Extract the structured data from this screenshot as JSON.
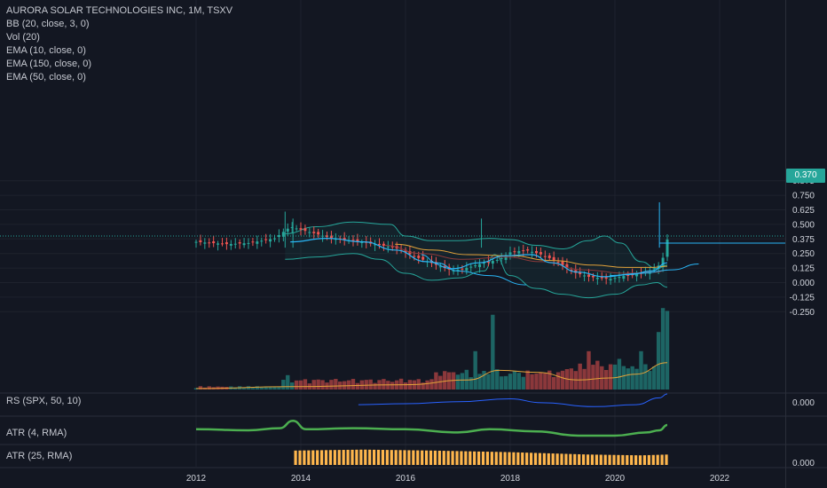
{
  "legend": {
    "title": "AURORA SOLAR TECHNOLOGIES INC, 1M, TSXV",
    "indicators": [
      "BB (20, close, 3, 0)",
      "Vol (20)",
      "EMA (10, close, 0)",
      "EMA (150, close, 0)",
      "EMA (50, close, 0)"
    ]
  },
  "panes": {
    "rs_label": "RS (SPX, 50, 10)",
    "atr4_label": "ATR (4, RMA)",
    "atr25_label": "ATR (25, RMA)",
    "rs_axis_value": "0.000",
    "atr25_axis_value": "0.000"
  },
  "price_badge": "0.370",
  "colors": {
    "background": "#131722",
    "up": "#26a69a",
    "down": "#ef5350",
    "bb": "#26a69a",
    "ema10": "#29b6f6",
    "ema150": "#e3a33a",
    "ema50": "#8b3a3a",
    "rs": "#2962ff",
    "atr4": "#4caf50",
    "atr25": "#ffb74d",
    "current_line": "#29b6f6"
  },
  "chart_data": [
    {
      "type": "candlestick",
      "x_ticks": [
        "2012",
        "2014",
        "2016",
        "2018",
        "2020",
        "2022"
      ],
      "y_ticks": [
        "0.875",
        "0.750",
        "0.625",
        "0.500",
        "0.375",
        "0.250",
        "0.125",
        "0.000",
        "-0.125",
        "-0.250"
      ],
      "ylim": [
        -0.3,
        0.95
      ],
      "xlim": [
        2011.0,
        2023.2
      ],
      "current_price": 0.37,
      "series": [
        {
          "name": "Close",
          "anchors": [
            [
              2012.0,
              0.35
            ],
            [
              2012.6,
              0.33
            ],
            [
              2013.0,
              0.34
            ],
            [
              2013.5,
              0.38
            ],
            [
              2013.8,
              0.48
            ],
            [
              2014.2,
              0.43
            ],
            [
              2014.6,
              0.38
            ],
            [
              2015.0,
              0.36
            ],
            [
              2015.4,
              0.33
            ],
            [
              2015.8,
              0.3
            ],
            [
              2016.2,
              0.22
            ],
            [
              2016.6,
              0.15
            ],
            [
              2016.9,
              0.1
            ],
            [
              2017.2,
              0.13
            ],
            [
              2017.5,
              0.17
            ],
            [
              2017.8,
              0.2
            ],
            [
              2018.0,
              0.26
            ],
            [
              2018.3,
              0.28
            ],
            [
              2018.6,
              0.24
            ],
            [
              2018.9,
              0.18
            ],
            [
              2019.2,
              0.09
            ],
            [
              2019.5,
              0.05
            ],
            [
              2019.9,
              0.03
            ],
            [
              2020.2,
              0.06
            ],
            [
              2020.5,
              0.08
            ],
            [
              2020.8,
              0.12
            ],
            [
              2020.95,
              0.24
            ],
            [
              2021.0,
              0.37
            ]
          ]
        },
        {
          "name": "BB (20, close, 3, 0)",
          "upper": [
            [
              2013.7,
              0.42
            ],
            [
              2014.3,
              0.48
            ],
            [
              2015.0,
              0.52
            ],
            [
              2015.7,
              0.5
            ],
            [
              2016.0,
              0.4
            ],
            [
              2016.5,
              0.36
            ],
            [
              2017.0,
              0.36
            ],
            [
              2017.6,
              0.38
            ],
            [
              2018.0,
              0.37
            ],
            [
              2018.5,
              0.32
            ],
            [
              2019.0,
              0.29
            ],
            [
              2019.5,
              0.36
            ],
            [
              2019.8,
              0.4
            ],
            [
              2020.1,
              0.34
            ],
            [
              2020.5,
              0.18
            ],
            [
              2020.8,
              0.12
            ],
            [
              2021.0,
              0.15
            ]
          ],
          "lower": [
            [
              2013.7,
              0.2
            ],
            [
              2014.3,
              0.22
            ],
            [
              2015.0,
              0.25
            ],
            [
              2015.5,
              0.2
            ],
            [
              2016.0,
              0.08
            ],
            [
              2016.5,
              0.02
            ],
            [
              2017.0,
              0.04
            ],
            [
              2017.5,
              0.1
            ],
            [
              2017.7,
              0.24
            ],
            [
              2018.0,
              0.06
            ],
            [
              2018.5,
              -0.05
            ],
            [
              2019.0,
              -0.1
            ],
            [
              2019.5,
              -0.13
            ],
            [
              2020.0,
              -0.1
            ],
            [
              2020.5,
              -0.02
            ],
            [
              2020.8,
              0.0
            ],
            [
              2021.0,
              -0.04
            ]
          ]
        },
        {
          "name": "EMA (10, close, 0)",
          "values": [
            [
              2013.8,
              0.35
            ],
            [
              2014.5,
              0.38
            ],
            [
              2015.2,
              0.35
            ],
            [
              2015.8,
              0.28
            ],
            [
              2016.4,
              0.18
            ],
            [
              2016.9,
              0.12
            ],
            [
              2017.4,
              0.17
            ],
            [
              2017.9,
              0.23
            ],
            [
              2018.4,
              0.24
            ],
            [
              2018.8,
              0.17
            ],
            [
              2019.3,
              0.09
            ],
            [
              2019.8,
              0.05
            ],
            [
              2020.3,
              0.07
            ],
            [
              2020.7,
              0.1
            ],
            [
              2021.0,
              0.17
            ]
          ]
        },
        {
          "name": "EMA (150, close, 0)",
          "values": [
            [
              2015.8,
              0.33
            ],
            [
              2016.5,
              0.28
            ],
            [
              2017.2,
              0.24
            ],
            [
              2018.0,
              0.23
            ],
            [
              2018.8,
              0.19
            ],
            [
              2019.6,
              0.15
            ],
            [
              2020.2,
              0.13
            ],
            [
              2020.7,
              0.13
            ],
            [
              2021.0,
              0.14
            ]
          ]
        },
        {
          "name": "EMA (50, close, 0)",
          "values": [
            [
              2015.6,
              0.32
            ],
            [
              2016.3,
              0.25
            ],
            [
              2017.1,
              0.2
            ],
            [
              2017.9,
              0.22
            ],
            [
              2018.6,
              0.18
            ],
            [
              2019.4,
              0.11
            ],
            [
              2020.2,
              0.08
            ],
            [
              2020.8,
              0.09
            ],
            [
              2021.0,
              0.11
            ]
          ]
        },
        {
          "name": "Trendline",
          "values": [
            [
              2016.3,
              0.24
            ],
            [
              2016.6,
              0.17
            ],
            [
              2017.0,
              0.1
            ],
            [
              2017.6,
              0.06
            ],
            [
              2018.3,
              -0.02
            ]
          ]
        },
        {
          "name": "Trendline 2",
          "values": [
            [
              2019.9,
              0.06
            ],
            [
              2020.5,
              0.08
            ],
            [
              2021.1,
              0.11
            ],
            [
              2021.6,
              0.16
            ]
          ]
        }
      ]
    },
    {
      "type": "bar",
      "name": "Vol (20)",
      "spikes": [
        [
          2013.75,
          0.15
        ],
        [
          2016.1,
          0.1
        ],
        [
          2016.8,
          0.18
        ],
        [
          2017.3,
          0.4
        ],
        [
          2017.65,
          0.78
        ],
        [
          2017.9,
          0.14
        ],
        [
          2018.4,
          0.16
        ],
        [
          2019.2,
          0.22
        ],
        [
          2019.5,
          0.4
        ],
        [
          2019.7,
          0.3
        ],
        [
          2020.0,
          0.26
        ],
        [
          2020.05,
          0.32
        ],
        [
          2020.5,
          0.4
        ],
        [
          2020.85,
          0.6
        ],
        [
          2020.95,
          0.85
        ],
        [
          2021.0,
          0.82
        ]
      ]
    },
    {
      "type": "line",
      "name": "RS (SPX, 50, 10)",
      "values": [
        [
          2015.1,
          0.45
        ],
        [
          2016.0,
          0.5
        ],
        [
          2017.0,
          0.6
        ],
        [
          2018.0,
          0.75
        ],
        [
          2018.6,
          0.55
        ],
        [
          2019.6,
          0.35
        ],
        [
          2020.4,
          0.45
        ],
        [
          2020.85,
          0.8
        ],
        [
          2021.0,
          1.0
        ]
      ]
    },
    {
      "type": "line",
      "name": "ATR (4, RMA)",
      "values": [
        [
          2012.0,
          0.55
        ],
        [
          2013.0,
          0.5
        ],
        [
          2013.6,
          0.6
        ],
        [
          2013.85,
          0.95
        ],
        [
          2014.1,
          0.55
        ],
        [
          2015.0,
          0.6
        ],
        [
          2016.0,
          0.55
        ],
        [
          2017.0,
          0.4
        ],
        [
          2017.6,
          0.55
        ],
        [
          2018.5,
          0.45
        ],
        [
          2019.3,
          0.25
        ],
        [
          2020.0,
          0.25
        ],
        [
          2020.6,
          0.4
        ],
        [
          2020.85,
          0.5
        ],
        [
          2021.0,
          0.75
        ]
      ]
    },
    {
      "type": "bar",
      "name": "ATR (25, RMA)",
      "values": [
        [
          2013.9,
          0.9
        ],
        [
          2015.2,
          0.96
        ],
        [
          2016.5,
          0.9
        ],
        [
          2018.0,
          0.8
        ],
        [
          2019.5,
          0.65
        ],
        [
          2020.5,
          0.6
        ],
        [
          2021.0,
          0.65
        ]
      ]
    }
  ]
}
